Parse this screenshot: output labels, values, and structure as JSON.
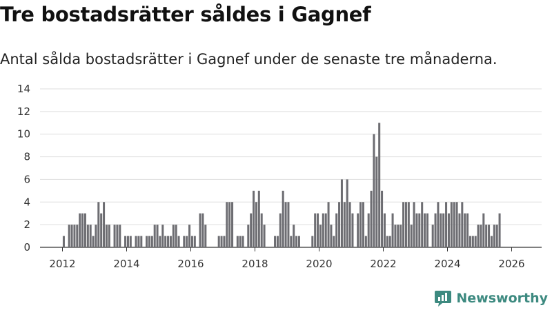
{
  "header": {
    "title": "Tre bostadsrätter såldes i Gagnef",
    "subtitle": "Antal sålda bostadsrätter i Gagnef under de senaste tre månaderna."
  },
  "brand": {
    "name": "Newsworthy",
    "color": "#3d8a80",
    "icon": "newsworthy-logo-icon"
  },
  "colors": {
    "bar": "#6d6d72",
    "highlight": "#1e9e8f",
    "grid": "#dddddd",
    "axis": "#333333"
  },
  "chart_data": {
    "type": "bar",
    "title": "Tre bostadsrätter såldes i Gagnef",
    "subtitle": "Antal sålda bostadsrätter i Gagnef under de senaste tre månaderna.",
    "xlabel": "",
    "ylabel": "",
    "x_start": "2012-01",
    "interval": "month",
    "ylim": [
      0,
      14
    ],
    "yticks": [
      0,
      2,
      4,
      6,
      8,
      10,
      12,
      14
    ],
    "xticks": [
      {
        "label": "2012",
        "year": 2012
      },
      {
        "label": "2014",
        "year": 2014
      },
      {
        "label": "2016",
        "year": 2016
      },
      {
        "label": "2018",
        "year": 2018
      },
      {
        "label": "2020",
        "year": 2020
      },
      {
        "label": "2022",
        "year": 2022
      },
      {
        "label": "2024",
        "year": 2024
      },
      {
        "label": "2026",
        "year": 2026
      }
    ],
    "grid": true,
    "values": [
      1,
      0,
      2,
      2,
      2,
      2,
      3,
      3,
      3,
      2,
      2,
      1,
      2,
      4,
      3,
      4,
      2,
      2,
      0,
      2,
      2,
      2,
      0,
      1,
      1,
      1,
      0,
      1,
      1,
      1,
      0,
      1,
      1,
      1,
      2,
      2,
      1,
      2,
      1,
      1,
      1,
      2,
      2,
      1,
      0,
      1,
      1,
      2,
      1,
      1,
      0,
      3,
      3,
      2,
      0,
      0,
      0,
      0,
      1,
      1,
      1,
      4,
      4,
      4,
      0,
      1,
      1,
      1,
      0,
      2,
      3,
      5,
      4,
      5,
      3,
      2,
      0,
      0,
      0,
      1,
      1,
      3,
      5,
      4,
      4,
      1,
      2,
      1,
      1,
      0,
      0,
      0,
      0,
      1,
      3,
      3,
      2,
      3,
      3,
      4,
      2,
      1,
      3,
      4,
      6,
      4,
      6,
      4,
      3,
      0,
      3,
      4,
      4,
      1,
      3,
      5,
      10,
      8,
      11,
      5,
      3,
      1,
      1,
      3,
      2,
      2,
      2,
      4,
      4,
      4,
      2,
      4,
      3,
      3,
      4,
      3,
      3,
      0,
      2,
      3,
      4,
      3,
      3,
      4,
      3,
      4,
      4,
      4,
      3,
      4,
      3,
      3,
      1,
      1,
      1,
      2,
      2,
      3,
      2,
      2,
      1,
      2,
      2,
      3
    ],
    "highlight": {
      "indices": [
        169
      ],
      "label": "3"
    },
    "legend": "none"
  }
}
